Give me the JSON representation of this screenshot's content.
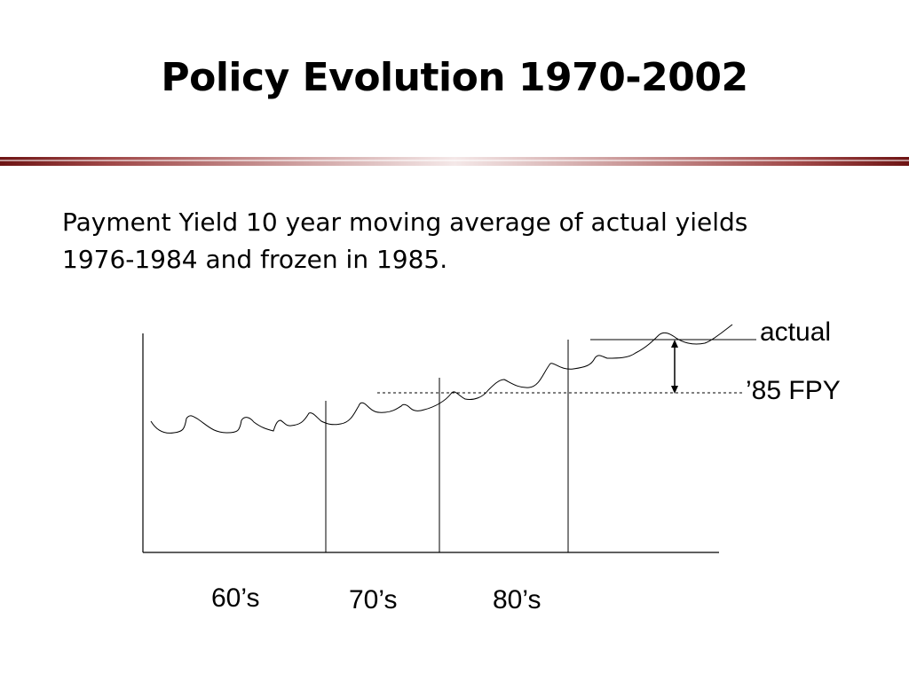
{
  "slide": {
    "title": "Policy Evolution 1970-2002",
    "body_lines": [
      "Payment Yield 10 year moving average of actual yields",
      "1976-1984 and frozen in 1985."
    ]
  },
  "diagram": {
    "label_actual": "actual",
    "label_fpy": "’85 FPY",
    "decades": [
      "60’s",
      "70’s",
      "80’s"
    ]
  }
}
